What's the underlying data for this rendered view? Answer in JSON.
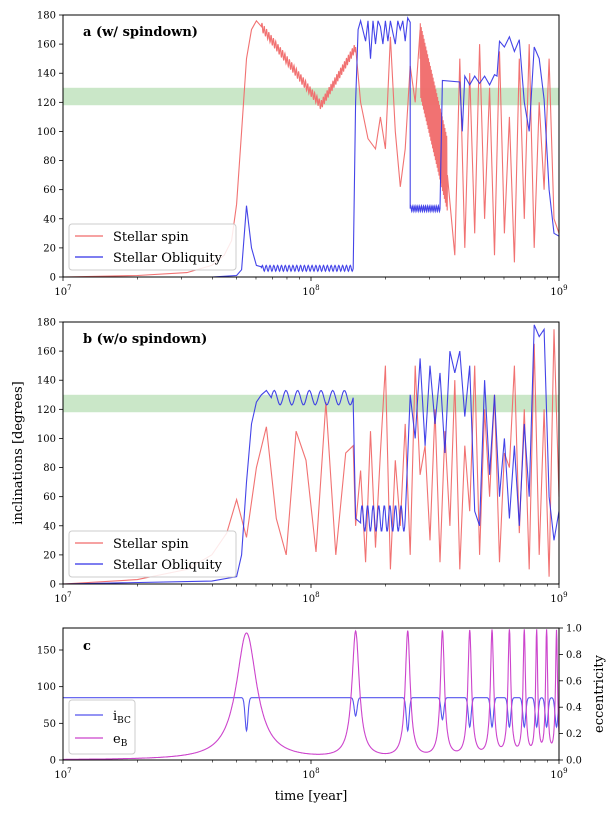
{
  "figure": {
    "shared_ylabel": "inclinations [degrees]",
    "xlabel": "time [year]"
  },
  "chart_data": [
    {
      "type": "line",
      "panel_label": "a (w/ spindown)",
      "xscale": "log",
      "xlim": [
        10000000,
        1000000000
      ],
      "x_tick_labels": [
        "10^7",
        "10^8",
        "10^9"
      ],
      "ylim": [
        0,
        180
      ],
      "y_ticks": [
        0,
        20,
        40,
        60,
        80,
        100,
        120,
        140,
        160,
        180
      ],
      "band": {
        "y_from": 118,
        "y_to": 130,
        "color": "#9fd49a"
      },
      "legend_position": "lower-left",
      "series": [
        {
          "name": "Stellar spin",
          "color": "#f06a6a",
          "segments": [
            {
              "log_t": [
                7.0,
                7.3,
                7.5,
                7.6,
                7.65,
                7.68,
                7.7,
                7.72,
                7.74,
                7.76,
                7.78,
                7.8
              ],
              "values": [
                0,
                1,
                3,
                8,
                15,
                25,
                50,
                100,
                150,
                170,
                176,
                172
              ]
            },
            {
              "type": "decay",
              "log_t_range": [
                7.8,
                8.04
              ],
              "start": 172,
              "end": 118,
              "amp": 3,
              "cycles": 26
            },
            {
              "type": "decay",
              "log_t_range": [
                8.04,
                8.18
              ],
              "start": 118,
              "end": 158,
              "amp": 3,
              "cycles": 18
            },
            {
              "log_t": [
                8.18,
                8.2,
                8.23,
                8.26,
                8.28,
                8.3,
                8.32,
                8.34,
                8.36,
                8.38,
                8.4,
                8.42,
                8.44
              ],
              "values": [
                158,
                120,
                95,
                88,
                110,
                88,
                165,
                100,
                62,
                88,
                145,
                120,
                170
              ]
            },
            {
              "type": "decay",
              "log_t_range": [
                8.44,
                8.55
              ],
              "start": 150,
              "end": 70,
              "amp": 25,
              "cycles": 30
            },
            {
              "log_t": [
                8.55,
                8.58,
                8.6,
                8.62,
                8.64,
                8.66,
                8.68,
                8.7,
                8.72,
                8.74,
                8.76,
                8.78,
                8.8,
                8.82,
                8.84,
                8.86,
                8.88,
                8.9,
                8.92,
                8.94,
                8.96,
                8.98,
                9.0
              ],
              "values": [
                70,
                15,
                150,
                20,
                140,
                30,
                160,
                40,
                130,
                15,
                155,
                30,
                110,
                10,
                150,
                40,
                160,
                20,
                120,
                60,
                150,
                40,
                30
              ]
            }
          ]
        },
        {
          "name": "Stellar Obliquity",
          "color": "#3030e6",
          "segments": [
            {
              "log_t": [
                7.0,
                7.6,
                7.7,
                7.72,
                7.74,
                7.76,
                7.78,
                7.8
              ],
              "values": [
                0,
                0,
                1,
                5,
                49,
                20,
                8,
                7
              ]
            },
            {
              "type": "osc",
              "log_t_range": [
                7.8,
                8.17
              ],
              "center": 6,
              "amp": 2,
              "cycles": 24
            },
            {
              "log_t": [
                8.17,
                8.18,
                8.19,
                8.2,
                8.22,
                8.23,
                8.24,
                8.25,
                8.26,
                8.27,
                8.28,
                8.29,
                8.3,
                8.31,
                8.32,
                8.33,
                8.34,
                8.35,
                8.36,
                8.37,
                8.38,
                8.39,
                8.4
              ],
              "values": [
                6,
                120,
                170,
                176,
                162,
                176,
                150,
                176,
                160,
                176,
                172,
                160,
                176,
                162,
                176,
                168,
                160,
                176,
                170,
                176,
                162,
                178,
                175
              ]
            },
            {
              "type": "osc",
              "log_t_range": [
                8.4,
                8.52
              ],
              "center": 47,
              "amp": 2,
              "cycles": 14
            },
            {
              "log_t": [
                8.52,
                8.53,
                8.6,
                8.61,
                8.62,
                8.64,
                8.66,
                8.68,
                8.7,
                8.72,
                8.74,
                8.75
              ],
              "values": [
                47,
                135,
                134,
                100,
                138,
                132,
                138,
                133,
                138,
                132,
                139,
                138
              ]
            },
            {
              "log_t": [
                8.75,
                8.76,
                8.78,
                8.8,
                8.82,
                8.84,
                8.86,
                8.88,
                8.9,
                8.92,
                8.94,
                8.96,
                8.98,
                9.0
              ],
              "values": [
                138,
                162,
                158,
                165,
                155,
                163,
                120,
                100,
                158,
                150,
                122,
                60,
                30,
                28
              ]
            }
          ]
        }
      ]
    },
    {
      "type": "line",
      "panel_label": "b (w/o spindown)",
      "xscale": "log",
      "xlim": [
        10000000,
        1000000000
      ],
      "x_tick_labels": [
        "10^7",
        "10^8",
        "10^9"
      ],
      "ylim": [
        0,
        180
      ],
      "y_ticks": [
        0,
        20,
        40,
        60,
        80,
        100,
        120,
        140,
        160,
        180
      ],
      "band": {
        "y_from": 118,
        "y_to": 130,
        "color": "#9fd49a"
      },
      "legend_position": "lower-left",
      "series": [
        {
          "name": "Stellar spin",
          "color": "#f06a6a",
          "segments": [
            {
              "log_t": [
                7.0,
                7.3,
                7.5,
                7.6,
                7.66,
                7.7,
                7.74,
                7.78,
                7.82,
                7.86,
                7.9,
                7.94,
                7.98,
                8.02,
                8.06,
                8.1,
                8.14,
                8.17,
                8.18,
                8.2,
                8.22,
                8.24,
                8.26,
                8.28,
                8.3,
                8.32,
                8.34,
                8.36,
                8.38,
                8.4,
                8.42,
                8.44,
                8.46,
                8.48,
                8.5,
                8.52,
                8.54,
                8.56,
                8.58,
                8.6,
                8.62,
                8.64,
                8.66,
                8.68,
                8.7,
                8.72,
                8.74,
                8.76,
                8.78,
                8.8,
                8.82,
                8.84,
                8.86,
                8.88,
                8.9,
                8.92,
                8.94,
                8.96,
                8.98,
                9.0
              ],
              "values": [
                0,
                3,
                10,
                20,
                35,
                58,
                32,
                80,
                108,
                45,
                20,
                105,
                85,
                22,
                125,
                20,
                90,
                95,
                40,
                78,
                15,
                105,
                25,
                90,
                150,
                10,
                85,
                40,
                110,
                20,
                150,
                75,
                95,
                30,
                120,
                15,
                105,
                40,
                140,
                10,
                95,
                50,
                150,
                20,
                120,
                60,
                130,
                15,
                90,
                80,
                150,
                35,
                120,
                10,
                165,
                20,
                120,
                5,
                175,
                60
              ]
            }
          ]
        },
        {
          "name": "Stellar Obliquity",
          "color": "#3030e6",
          "segments": [
            {
              "log_t": [
                7.0,
                7.6,
                7.7,
                7.72,
                7.74,
                7.76,
                7.78,
                7.8,
                7.82,
                7.84
              ],
              "values": [
                0,
                2,
                5,
                20,
                70,
                110,
                125,
                130,
                133,
                128
              ]
            },
            {
              "type": "osc",
              "log_t_range": [
                7.84,
                8.17
              ],
              "center": 128,
              "amp": 5,
              "cycles": 7
            },
            {
              "log_t": [
                8.17,
                8.18,
                8.2
              ],
              "values": [
                125,
                45,
                42
              ]
            },
            {
              "type": "osc",
              "log_t_range": [
                8.2,
                8.38
              ],
              "center": 45,
              "amp": 9,
              "cycles": 8
            },
            {
              "log_t": [
                8.38,
                8.4,
                8.42,
                8.44,
                8.46,
                8.48,
                8.5,
                8.52,
                8.54,
                8.56,
                8.58,
                8.6,
                8.62,
                8.64,
                8.66,
                8.68,
                8.7,
                8.72,
                8.74,
                8.76,
                8.78,
                8.8,
                8.82,
                8.84,
                8.86,
                8.88,
                8.9,
                8.92,
                8.94,
                8.96,
                8.98,
                9.0
              ],
              "values": [
                45,
                130,
                100,
                155,
                95,
                150,
                110,
                145,
                90,
                160,
                145,
                160,
                115,
                150,
                50,
                40,
                140,
                75,
                130,
                60,
                100,
                45,
                95,
                40,
                110,
                60,
                178,
                170,
                175,
                60,
                30,
                50
              ]
            }
          ]
        }
      ]
    },
    {
      "type": "line",
      "panel_label": "c",
      "xscale": "log",
      "xlim": [
        10000000,
        1000000000
      ],
      "x_tick_labels": [
        "10^7",
        "10^8",
        "10^9"
      ],
      "ylim": [
        0,
        180
      ],
      "y_ticks": [
        0,
        50,
        100,
        150
      ],
      "y2label": "eccentricity",
      "y2lim": [
        0,
        1
      ],
      "y2_ticks": [
        0.0,
        0.2,
        0.4,
        0.6,
        0.8,
        1.0
      ],
      "legend_position": "lower-left",
      "series": [
        {
          "name": "i_BC",
          "axis": "left",
          "color": "#5555ee",
          "baseline": 85,
          "dips": [
            {
              "log_t": 7.74,
              "value": 40
            },
            {
              "log_t": 8.18,
              "value": 60
            },
            {
              "log_t": 8.39,
              "value": 40
            },
            {
              "log_t": 8.53,
              "value": 55
            },
            {
              "log_t": 8.64,
              "value": 45
            },
            {
              "log_t": 8.73,
              "value": 45
            },
            {
              "log_t": 8.8,
              "value": 45
            },
            {
              "log_t": 8.86,
              "value": 45
            },
            {
              "log_t": 8.91,
              "value": 45
            },
            {
              "log_t": 8.95,
              "value": 45
            },
            {
              "log_t": 8.99,
              "value": 45
            }
          ]
        },
        {
          "name": "e_B",
          "axis": "right",
          "color": "#cc44cc",
          "peaks": [
            {
              "log_t": 7.74,
              "value": 0.96,
              "width": 0.05
            },
            {
              "log_t": 8.18,
              "value": 0.96,
              "width": 0.018
            },
            {
              "log_t": 8.39,
              "value": 0.96,
              "width": 0.012
            },
            {
              "log_t": 8.53,
              "value": 0.96,
              "width": 0.01
            },
            {
              "log_t": 8.64,
              "value": 0.96,
              "width": 0.009
            },
            {
              "log_t": 8.73,
              "value": 0.96,
              "width": 0.008
            },
            {
              "log_t": 8.8,
              "value": 0.96,
              "width": 0.007
            },
            {
              "log_t": 8.86,
              "value": 0.96,
              "width": 0.006
            },
            {
              "log_t": 8.91,
              "value": 0.96,
              "width": 0.005
            },
            {
              "log_t": 8.95,
              "value": 0.96,
              "width": 0.005
            },
            {
              "log_t": 8.99,
              "value": 0.96,
              "width": 0.005
            }
          ]
        }
      ]
    }
  ]
}
